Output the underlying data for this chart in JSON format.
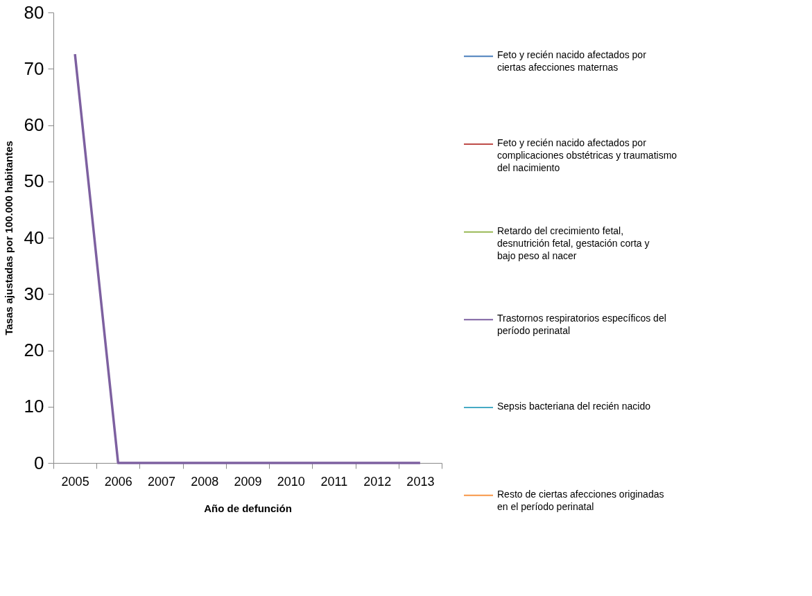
{
  "chart_data": {
    "type": "line",
    "xlabel": "Año de defunción",
    "ylabel": "Tasas ajustadas por 100.000 habitantes",
    "categories": [
      "2005",
      "2006",
      "2007",
      "2008",
      "2009",
      "2010",
      "2011",
      "2012",
      "2013"
    ],
    "series": [
      {
        "name": "Feto y recién nacido afectados por ciertas afecciones maternas",
        "color": "#4a7ebb",
        "values": [
          null,
          null,
          null,
          null,
          null,
          null,
          null,
          null,
          null
        ]
      },
      {
        "name": "Feto y recién nacido afectados por complicaciones obstétricas y traumatismo del nacimiento",
        "color": "#be4b48",
        "values": [
          null,
          null,
          null,
          null,
          null,
          null,
          null,
          null,
          null
        ]
      },
      {
        "name": "Retardo del crecimiento fetal, desnutrición fetal, gestación corta y bajo peso al nacer",
        "color": "#98b954",
        "values": [
          null,
          null,
          null,
          null,
          null,
          null,
          null,
          null,
          null
        ]
      },
      {
        "name": "Trastornos respiratorios específicos del período perinatal",
        "color": "#7d60a0",
        "values": [
          72.6,
          0,
          0,
          0,
          0,
          0,
          0,
          0,
          0
        ]
      },
      {
        "name": "Sepsis bacteriana del recién nacido",
        "color": "#46aac5",
        "values": [
          null,
          null,
          null,
          null,
          null,
          null,
          null,
          null,
          null
        ]
      },
      {
        "name": "Resto de ciertas afecciones originadas en el período perinatal",
        "color": "#f79646",
        "values": [
          null,
          null,
          null,
          null,
          null,
          null,
          null,
          null,
          null
        ]
      }
    ],
    "ylim": [
      0,
      80
    ],
    "yticks": [
      0,
      10,
      20,
      30,
      40,
      50,
      60,
      70,
      80
    ],
    "grid": false,
    "legend": "right",
    "marker": "none",
    "line_style": "solid"
  }
}
